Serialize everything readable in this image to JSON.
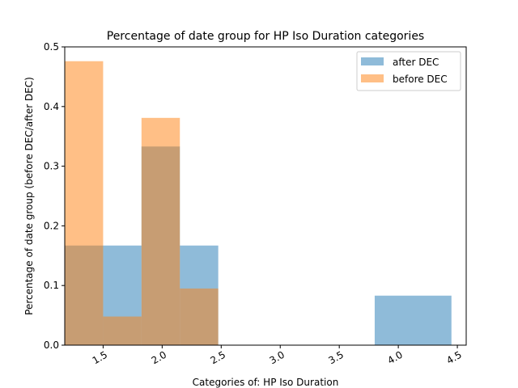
{
  "chart_data": {
    "type": "bar",
    "title": "Percentage of date group for HP Iso Duration categories",
    "xlabel": "Categories of: HP Iso Duration",
    "ylabel": "Percentage of date group (before DEC/after DEC)",
    "xlim": [
      1.175,
      4.575
    ],
    "ylim": [
      0,
      0.5
    ],
    "xticks": [
      "1.5",
      "2.0",
      "2.5",
      "3.0",
      "3.5",
      "4.0",
      "4.5"
    ],
    "xtick_values": [
      1.5,
      2.0,
      2.5,
      3.0,
      3.5,
      4.0,
      4.5
    ],
    "yticks": [
      "0.0",
      "0.1",
      "0.2",
      "0.3",
      "0.4",
      "0.5"
    ],
    "ytick_values": [
      0.0,
      0.1,
      0.2,
      0.3,
      0.4,
      0.5
    ],
    "legend_position": "top-right",
    "grid": false,
    "series": [
      {
        "name": "after DEC",
        "color": "#1f77b4",
        "opacity": 0.5,
        "bins": [
          {
            "x0": 1.175,
            "x1": 1.5,
            "value": 0.167
          },
          {
            "x0": 1.5,
            "x1": 1.825,
            "value": 0.167
          },
          {
            "x0": 1.825,
            "x1": 2.15,
            "value": 0.333
          },
          {
            "x0": 2.15,
            "x1": 2.475,
            "value": 0.167
          },
          {
            "x0": 3.8,
            "x1": 4.45,
            "value": 0.083
          }
        ]
      },
      {
        "name": "before DEC",
        "color": "#ff7f0e",
        "opacity": 0.5,
        "bins": [
          {
            "x0": 1.175,
            "x1": 1.5,
            "value": 0.476
          },
          {
            "x0": 1.5,
            "x1": 1.825,
            "value": 0.048
          },
          {
            "x0": 1.825,
            "x1": 2.15,
            "value": 0.381
          },
          {
            "x0": 2.15,
            "x1": 2.475,
            "value": 0.095
          }
        ]
      }
    ]
  }
}
